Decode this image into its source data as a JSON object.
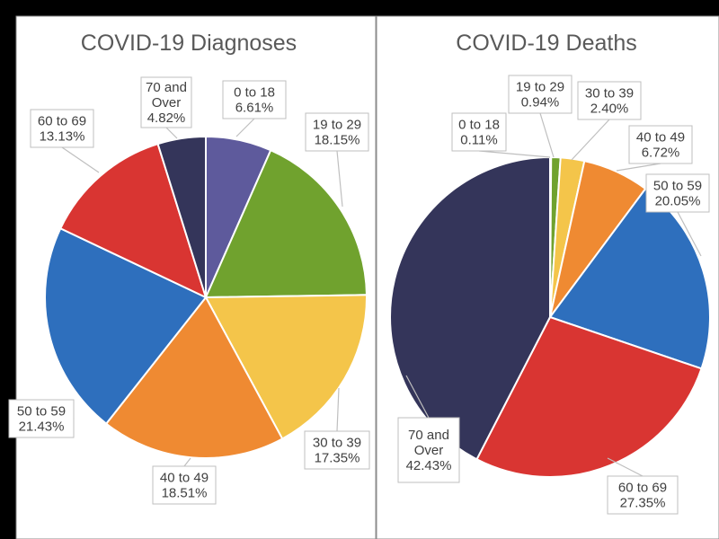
{
  "chart_data": [
    {
      "type": "pie",
      "title": "COVID-19 Diagnoses",
      "slices": [
        {
          "name": "0 to 18",
          "value": 6.61,
          "label": "6.61%",
          "color": "#5e5a9c"
        },
        {
          "name": "19 to 29",
          "value": 18.15,
          "label": "18.15%",
          "color": "#70a22e"
        },
        {
          "name": "30 to 39",
          "value": 17.35,
          "label": "17.35%",
          "color": "#f4c54a"
        },
        {
          "name": "40 to 49",
          "value": 18.51,
          "label": "18.51%",
          "color": "#ef8a32"
        },
        {
          "name": "50 to 59",
          "value": 21.43,
          "label": "21.43%",
          "color": "#2e6fbd"
        },
        {
          "name": "60 to 69",
          "value": 13.13,
          "label": "13.13%",
          "color": "#d93532"
        },
        {
          "name": "70 and Over",
          "value": 4.82,
          "label": "4.82%",
          "color": "#34355a"
        }
      ]
    },
    {
      "type": "pie",
      "title": "COVID-19 Deaths",
      "slices": [
        {
          "name": "0 to 18",
          "value": 0.11,
          "label": "0.11%",
          "color": "#5e5a9c"
        },
        {
          "name": "19 to 29",
          "value": 0.94,
          "label": "0.94%",
          "color": "#70a22e"
        },
        {
          "name": "30 to 39",
          "value": 2.4,
          "label": "2.40%",
          "color": "#f4c54a"
        },
        {
          "name": "40 to 49",
          "value": 6.72,
          "label": "6.72%",
          "color": "#ef8a32"
        },
        {
          "name": "50 to 59",
          "value": 20.05,
          "label": "20.05%",
          "color": "#2e6fbd"
        },
        {
          "name": "60 to 69",
          "value": 27.35,
          "label": "27.35%",
          "color": "#d93532"
        },
        {
          "name": "70 and Over",
          "value": 42.43,
          "label": "42.43%",
          "color": "#34355a"
        }
      ]
    }
  ]
}
